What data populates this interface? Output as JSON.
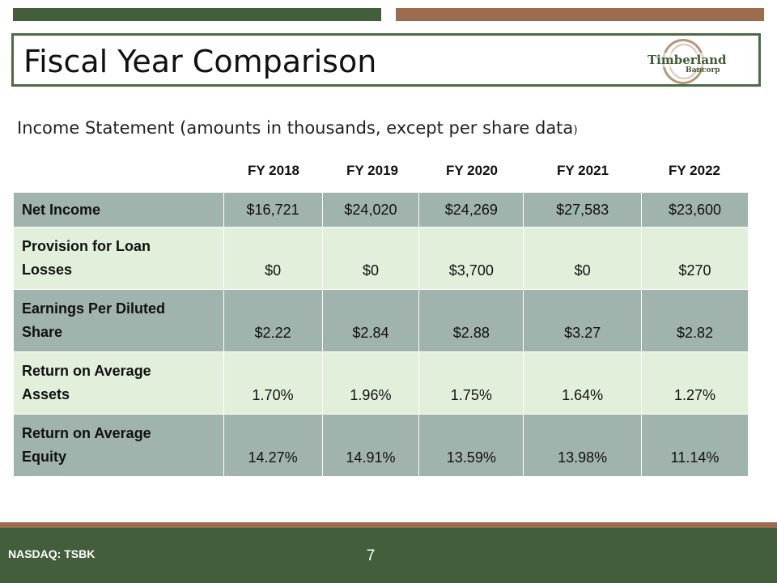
{
  "slide": {
    "title": "Fiscal Year Comparison",
    "subtitle_main": "Income Statement (amounts in thousands, except per share data",
    "subtitle_close": ")",
    "page_number": "7",
    "ticker": "NASDAQ: TSBK"
  },
  "logo": {
    "name": "Timberland",
    "sub": "Bancorp"
  },
  "table": {
    "columns": [
      "FY 2018",
      "FY 2019",
      "FY 2020",
      "FY 2021",
      "FY 2022"
    ],
    "rows": [
      {
        "label": "Net Income",
        "values": [
          "$16,721",
          "$24,020",
          "$24,269",
          "$27,583",
          "$23,600"
        ]
      },
      {
        "label_line1": "Provision for Loan",
        "label_line2": "Losses",
        "values": [
          "$0",
          "$0",
          "$3,700",
          "$0",
          "$270"
        ]
      },
      {
        "label_line1": "Earnings Per Diluted",
        "label_line2": "Share",
        "values": [
          "$2.22",
          "$2.84",
          "$2.88",
          "$3.27",
          "$2.82"
        ]
      },
      {
        "label_line1": "Return on Average",
        "label_line2": "Assets",
        "values": [
          "1.70%",
          "1.96%",
          "1.75%",
          "1.64%",
          "1.27%"
        ]
      },
      {
        "label_line1": "Return on Average",
        "label_line2": "Equity",
        "values": [
          "14.27%",
          "14.91%",
          "13.59%",
          "13.98%",
          "11.14%"
        ]
      }
    ]
  },
  "colors": {
    "dark_green": "#425e3b",
    "brown": "#9d6b4d",
    "row_dark": "#a0b3ac",
    "row_light": "#e2efda"
  }
}
